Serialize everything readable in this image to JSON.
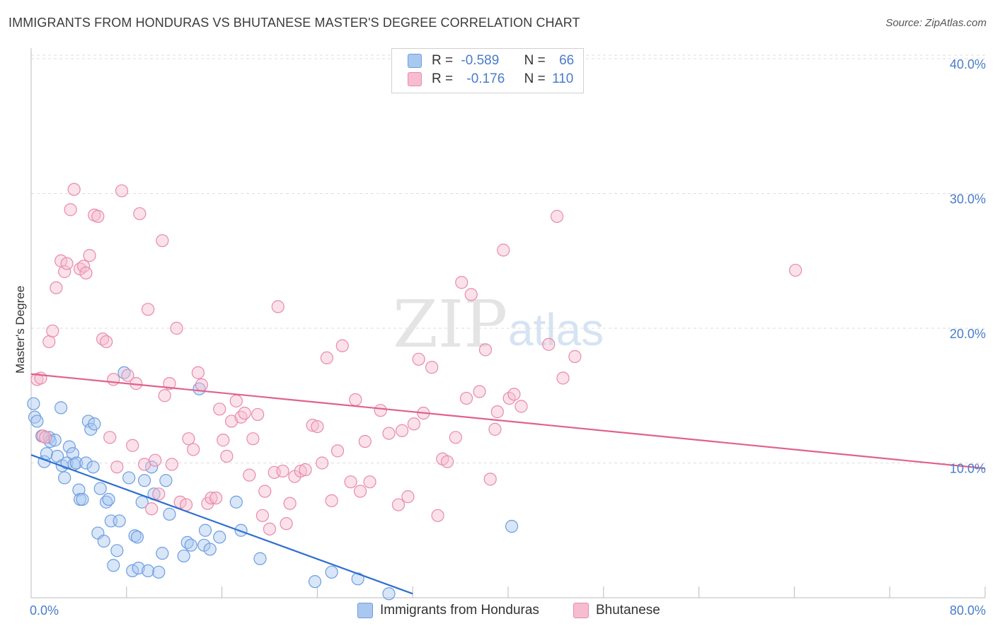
{
  "title": "IMMIGRANTS FROM HONDURAS VS BHUTANESE MASTER'S DEGREE CORRELATION CHART",
  "source": "Source: ZipAtlas.com",
  "watermark": {
    "zip": "ZIP",
    "atlas": "atlas"
  },
  "legend": {
    "rows": [
      {
        "r_label": "R =",
        "r_value": "-0.589",
        "n_label": "N =",
        "n_value": "66",
        "color": "#a9c8f0",
        "border": "#6d9de0"
      },
      {
        "r_label": "R =",
        "r_value": "-0.176",
        "n_label": "N =",
        "n_value": "110",
        "color": "#f7bcd0",
        "border": "#e88aab"
      }
    ]
  },
  "bottom_legend": [
    {
      "label": "Immigrants from Honduras",
      "color": "#a9c8f0",
      "border": "#6d9de0"
    },
    {
      "label": "Bhutanese",
      "color": "#f7bcd0",
      "border": "#e88aab"
    }
  ],
  "chart_data": {
    "type": "scatter",
    "title": "IMMIGRANTS FROM HONDURAS VS BHUTANESE MASTER'S DEGREE CORRELATION CHART",
    "xlabel": "",
    "ylabel": "Master's Degree",
    "xlim": [
      0,
      80
    ],
    "ylim": [
      0,
      40
    ],
    "x_tick_labels": [
      "0.0%",
      "80.0%"
    ],
    "y_ticks": [
      10,
      20,
      30,
      40
    ],
    "y_tick_labels": [
      "10.0%",
      "20.0%",
      "30.0%",
      "40.0%"
    ],
    "grid": true,
    "legend_position": "top-center",
    "series": [
      {
        "name": "Immigrants from Honduras",
        "color": "#6d9de0",
        "fill": "#a9c8f0",
        "trend": {
          "x": [
            0,
            32
          ],
          "y": [
            10.6,
            0.3
          ],
          "color": "#2e6fd0"
        },
        "points": [
          [
            0.2,
            14.4
          ],
          [
            0.3,
            13.4
          ],
          [
            0.5,
            13.1
          ],
          [
            0.9,
            12.0
          ],
          [
            1.1,
            10.1
          ],
          [
            1.3,
            10.7
          ],
          [
            1.5,
            11.9
          ],
          [
            1.6,
            11.6
          ],
          [
            2.0,
            11.7
          ],
          [
            2.2,
            10.5
          ],
          [
            2.5,
            14.1
          ],
          [
            2.6,
            9.8
          ],
          [
            2.8,
            8.9
          ],
          [
            3.0,
            10.0
          ],
          [
            3.2,
            11.2
          ],
          [
            3.5,
            10.7
          ],
          [
            3.6,
            9.9
          ],
          [
            3.8,
            10.0
          ],
          [
            4.0,
            8.0
          ],
          [
            4.1,
            7.3
          ],
          [
            4.3,
            7.3
          ],
          [
            4.6,
            10.0
          ],
          [
            4.8,
            13.1
          ],
          [
            5.0,
            12.5
          ],
          [
            5.2,
            9.7
          ],
          [
            5.3,
            12.9
          ],
          [
            5.6,
            4.8
          ],
          [
            5.8,
            8.1
          ],
          [
            6.1,
            4.2
          ],
          [
            6.3,
            7.1
          ],
          [
            6.5,
            7.3
          ],
          [
            6.7,
            5.7
          ],
          [
            6.9,
            2.4
          ],
          [
            7.2,
            3.5
          ],
          [
            7.4,
            5.7
          ],
          [
            7.8,
            16.7
          ],
          [
            8.2,
            8.9
          ],
          [
            8.5,
            2.0
          ],
          [
            8.7,
            4.6
          ],
          [
            8.9,
            4.5
          ],
          [
            9.0,
            2.2
          ],
          [
            9.3,
            7.1
          ],
          [
            9.5,
            8.7
          ],
          [
            9.8,
            2.0
          ],
          [
            10.1,
            9.7
          ],
          [
            10.3,
            7.7
          ],
          [
            10.7,
            1.9
          ],
          [
            11.0,
            3.3
          ],
          [
            11.3,
            8.7
          ],
          [
            11.6,
            6.2
          ],
          [
            12.8,
            3.1
          ],
          [
            13.1,
            4.1
          ],
          [
            13.4,
            3.9
          ],
          [
            14.1,
            15.5
          ],
          [
            14.5,
            3.9
          ],
          [
            14.6,
            5.0
          ],
          [
            15.0,
            3.6
          ],
          [
            15.8,
            4.5
          ],
          [
            17.2,
            7.1
          ],
          [
            17.6,
            5.0
          ],
          [
            19.2,
            2.9
          ],
          [
            23.8,
            1.2
          ],
          [
            25.2,
            1.9
          ],
          [
            27.4,
            1.4
          ],
          [
            40.3,
            5.3
          ],
          [
            30.0,
            0.3
          ]
        ]
      },
      {
        "name": "Bhutanese",
        "color": "#e88aab",
        "fill": "#f7bcd0",
        "trend": {
          "x": [
            0,
            80
          ],
          "y": [
            16.6,
            9.6
          ],
          "color": "#e0628d"
        },
        "points": [
          [
            0.5,
            16.2
          ],
          [
            0.8,
            16.3
          ],
          [
            1.0,
            12.0
          ],
          [
            1.2,
            11.9
          ],
          [
            1.5,
            19.0
          ],
          [
            1.8,
            19.8
          ],
          [
            2.1,
            23.0
          ],
          [
            2.5,
            25.0
          ],
          [
            2.8,
            24.2
          ],
          [
            3.0,
            24.8
          ],
          [
            3.3,
            28.8
          ],
          [
            3.6,
            30.3
          ],
          [
            4.1,
            24.4
          ],
          [
            4.4,
            24.6
          ],
          [
            4.6,
            24.1
          ],
          [
            4.9,
            25.4
          ],
          [
            5.3,
            28.4
          ],
          [
            5.6,
            28.3
          ],
          [
            6.0,
            19.2
          ],
          [
            6.3,
            19.0
          ],
          [
            6.6,
            11.9
          ],
          [
            6.9,
            16.2
          ],
          [
            7.2,
            9.7
          ],
          [
            7.6,
            30.2
          ],
          [
            8.1,
            16.5
          ],
          [
            8.5,
            11.3
          ],
          [
            8.8,
            15.9
          ],
          [
            9.1,
            28.5
          ],
          [
            9.5,
            9.9
          ],
          [
            9.8,
            21.4
          ],
          [
            10.1,
            6.6
          ],
          [
            10.4,
            10.2
          ],
          [
            10.7,
            7.7
          ],
          [
            11.0,
            26.5
          ],
          [
            11.2,
            15.0
          ],
          [
            11.6,
            15.9
          ],
          [
            11.8,
            9.9
          ],
          [
            12.2,
            20.0
          ],
          [
            12.5,
            7.1
          ],
          [
            13.0,
            6.9
          ],
          [
            13.2,
            11.8
          ],
          [
            13.6,
            11.0
          ],
          [
            14.0,
            16.7
          ],
          [
            14.3,
            15.8
          ],
          [
            14.8,
            7.0
          ],
          [
            15.1,
            7.4
          ],
          [
            15.5,
            7.4
          ],
          [
            15.8,
            14.0
          ],
          [
            16.1,
            11.7
          ],
          [
            16.4,
            10.5
          ],
          [
            16.8,
            13.1
          ],
          [
            17.2,
            14.6
          ],
          [
            17.6,
            13.4
          ],
          [
            17.9,
            13.7
          ],
          [
            18.3,
            9.1
          ],
          [
            18.6,
            11.8
          ],
          [
            19.0,
            13.6
          ],
          [
            19.4,
            6.1
          ],
          [
            19.6,
            7.9
          ],
          [
            20.0,
            5.1
          ],
          [
            20.4,
            9.3
          ],
          [
            20.7,
            21.6
          ],
          [
            21.1,
            9.4
          ],
          [
            21.4,
            5.5
          ],
          [
            21.7,
            7.0
          ],
          [
            22.1,
            9.0
          ],
          [
            22.6,
            9.4
          ],
          [
            23.0,
            9.5
          ],
          [
            23.6,
            12.8
          ],
          [
            24.0,
            12.7
          ],
          [
            24.4,
            10.0
          ],
          [
            24.8,
            17.8
          ],
          [
            25.2,
            7.2
          ],
          [
            25.7,
            10.9
          ],
          [
            26.1,
            18.7
          ],
          [
            26.8,
            8.6
          ],
          [
            27.2,
            14.7
          ],
          [
            27.6,
            7.9
          ],
          [
            28.0,
            11.6
          ],
          [
            28.4,
            8.6
          ],
          [
            29.3,
            13.9
          ],
          [
            30.0,
            12.2
          ],
          [
            30.8,
            6.9
          ],
          [
            31.1,
            12.4
          ],
          [
            31.6,
            7.5
          ],
          [
            32.1,
            12.9
          ],
          [
            32.5,
            17.7
          ],
          [
            32.9,
            13.7
          ],
          [
            33.6,
            17.1
          ],
          [
            34.1,
            6.1
          ],
          [
            34.5,
            10.3
          ],
          [
            34.9,
            10.1
          ],
          [
            35.6,
            11.9
          ],
          [
            36.1,
            23.4
          ],
          [
            36.5,
            14.8
          ],
          [
            36.9,
            22.5
          ],
          [
            37.6,
            15.3
          ],
          [
            38.1,
            18.4
          ],
          [
            38.5,
            8.8
          ],
          [
            38.9,
            12.5
          ],
          [
            39.1,
            13.8
          ],
          [
            39.6,
            25.8
          ],
          [
            40.1,
            14.8
          ],
          [
            40.5,
            15.1
          ],
          [
            41.1,
            14.2
          ],
          [
            43.4,
            18.8
          ],
          [
            44.1,
            28.3
          ],
          [
            44.6,
            16.3
          ],
          [
            45.6,
            17.9
          ],
          [
            64.1,
            24.3
          ]
        ]
      }
    ]
  }
}
